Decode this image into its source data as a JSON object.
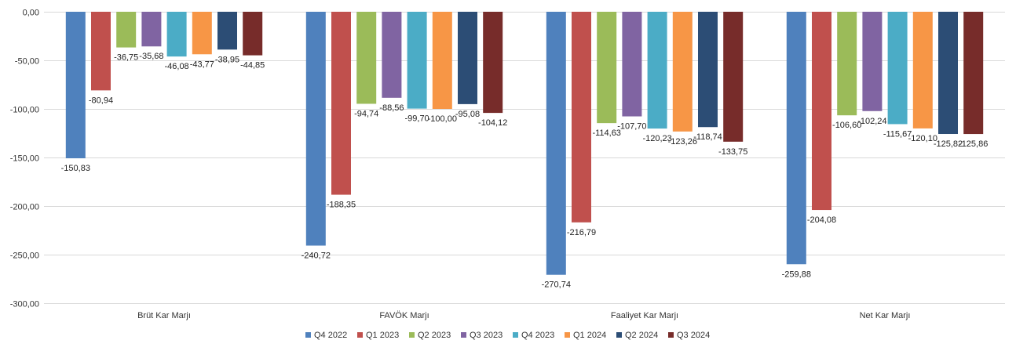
{
  "chart_data": {
    "type": "bar",
    "categories": [
      "Brüt Kar Marjı",
      "FAVÖK Marjı",
      "Faaliyet Kar Marjı",
      "Net Kar Marjı"
    ],
    "series": [
      {
        "name": "Q4 2022",
        "color": "#4f81bd",
        "values": [
          -150.83,
          -240.72,
          -270.74,
          -259.88
        ],
        "labels": [
          "-150,83",
          "-240,72",
          "-270,74",
          "-259,88"
        ]
      },
      {
        "name": "Q1 2023",
        "color": "#c0504d",
        "values": [
          -80.94,
          -188.35,
          -216.79,
          -204.08
        ],
        "labels": [
          "-80,94",
          "-188,35",
          "-216,79",
          "-204,08"
        ]
      },
      {
        "name": "Q2 2023",
        "color": "#9bbb59",
        "values": [
          -36.75,
          -94.74,
          -114.63,
          -106.6
        ],
        "labels": [
          "-36,75",
          "-94,74",
          "-114,63",
          "-106,60"
        ]
      },
      {
        "name": "Q3 2023",
        "color": "#8064a2",
        "values": [
          -35.68,
          -88.56,
          -107.7,
          -102.24
        ],
        "labels": [
          "-35,68",
          "-88,56",
          "-107,70",
          "-102,24"
        ]
      },
      {
        "name": "Q4 2023",
        "color": "#4bacc6",
        "values": [
          -46.08,
          -99.7,
          -120.23,
          -115.67
        ],
        "labels": [
          "-46,08",
          "-99,70",
          "-120,23",
          "-115,67"
        ]
      },
      {
        "name": "Q1 2024",
        "color": "#f79646",
        "values": [
          -43.77,
          -100.0,
          -123.26,
          -120.1
        ],
        "labels": [
          "-43,77",
          "-100,00",
          "-123,26",
          "-120,10"
        ]
      },
      {
        "name": "Q2 2024",
        "color": "#2c4d75",
        "values": [
          -38.95,
          -95.08,
          -118.74,
          -125.82
        ],
        "labels": [
          "-38,95",
          "-95,08",
          "-118,74",
          "-125,82"
        ]
      },
      {
        "name": "Q3 2024",
        "color": "#772c2a",
        "values": [
          -44.85,
          -104.12,
          -133.75,
          -125.86
        ],
        "labels": [
          "-44,85",
          "-104,12",
          "-133,75",
          "-125,86"
        ]
      }
    ],
    "ylim": [
      -300,
      0
    ],
    "yticks": [
      0,
      -50,
      -100,
      -150,
      -200,
      -250,
      -300
    ],
    "ytick_labels": [
      "0,00",
      "-50,00",
      "-100,00",
      "-150,00",
      "-200,00",
      "-250,00",
      "-300,00"
    ],
    "grid": true,
    "legend_position": "bottom"
  }
}
